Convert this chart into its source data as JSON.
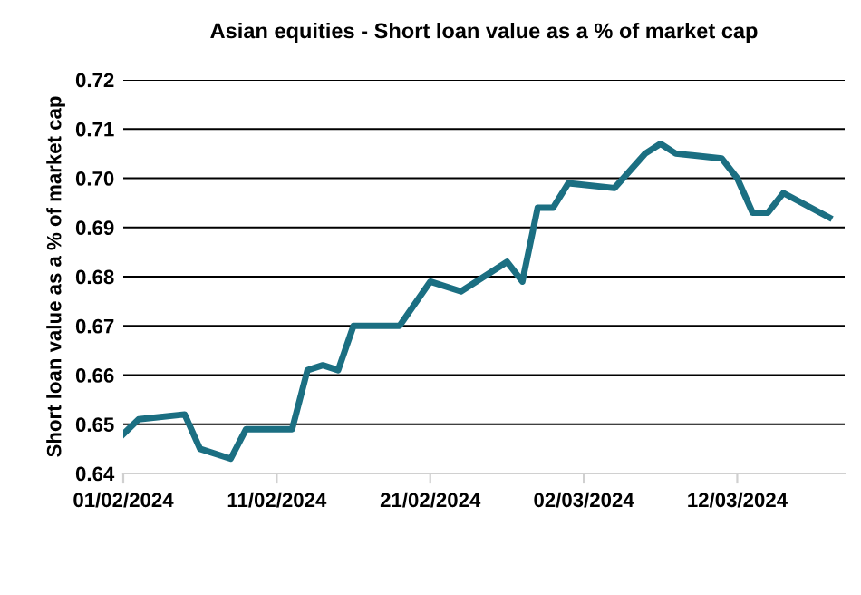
{
  "chart_data": {
    "type": "line",
    "title": "Asian equities - Short loan value as a % of market cap",
    "ylabel": "Short loan value as a % of market cap",
    "x": [
      "2024-02-01",
      "2024-02-02",
      "2024-02-05",
      "2024-02-06",
      "2024-02-08",
      "2024-02-09",
      "2024-02-12",
      "2024-02-13",
      "2024-02-14",
      "2024-02-15",
      "2024-02-16",
      "2024-02-19",
      "2024-02-21",
      "2024-02-23",
      "2024-02-26",
      "2024-02-27",
      "2024-02-28",
      "2024-02-29",
      "2024-03-01",
      "2024-03-04",
      "2024-03-06",
      "2024-03-07",
      "2024-03-08",
      "2024-03-11",
      "2024-03-12",
      "2024-03-13",
      "2024-03-14",
      "2024-03-15",
      "2024-03-18"
    ],
    "series": [
      {
        "color": "#1b6f82",
        "values": [
          0.648,
          0.651,
          0.652,
          0.645,
          0.643,
          0.649,
          0.649,
          0.661,
          0.662,
          0.661,
          0.67,
          0.67,
          0.679,
          0.677,
          0.683,
          0.679,
          0.694,
          0.694,
          0.699,
          0.698,
          0.705,
          0.707,
          0.705,
          0.704,
          0.7,
          0.693,
          0.693,
          0.697,
          0.692
        ]
      }
    ],
    "xlim": [
      "2024-02-01",
      "2024-03-19"
    ],
    "xticks": [
      {
        "value": "2024-02-01",
        "label": "01/02/2024"
      },
      {
        "value": "2024-02-11",
        "label": "11/02/2024"
      },
      {
        "value": "2024-02-21",
        "label": "21/02/2024"
      },
      {
        "value": "2024-03-02",
        "label": "02/03/2024"
      },
      {
        "value": "2024-03-12",
        "label": "12/03/2024"
      }
    ],
    "ylim": [
      0.64,
      0.72
    ],
    "yticks": [
      {
        "value": 0.64,
        "label": "0.64"
      },
      {
        "value": 0.65,
        "label": "0.65"
      },
      {
        "value": 0.66,
        "label": "0.66"
      },
      {
        "value": 0.67,
        "label": "0.67"
      },
      {
        "value": 0.68,
        "label": "0.68"
      },
      {
        "value": 0.69,
        "label": "0.69"
      },
      {
        "value": 0.7,
        "label": "0.70"
      },
      {
        "value": 0.71,
        "label": "0.71"
      },
      {
        "value": 0.72,
        "label": "0.72"
      }
    ],
    "grid": "y",
    "marker": "none",
    "line_style": "solid"
  }
}
